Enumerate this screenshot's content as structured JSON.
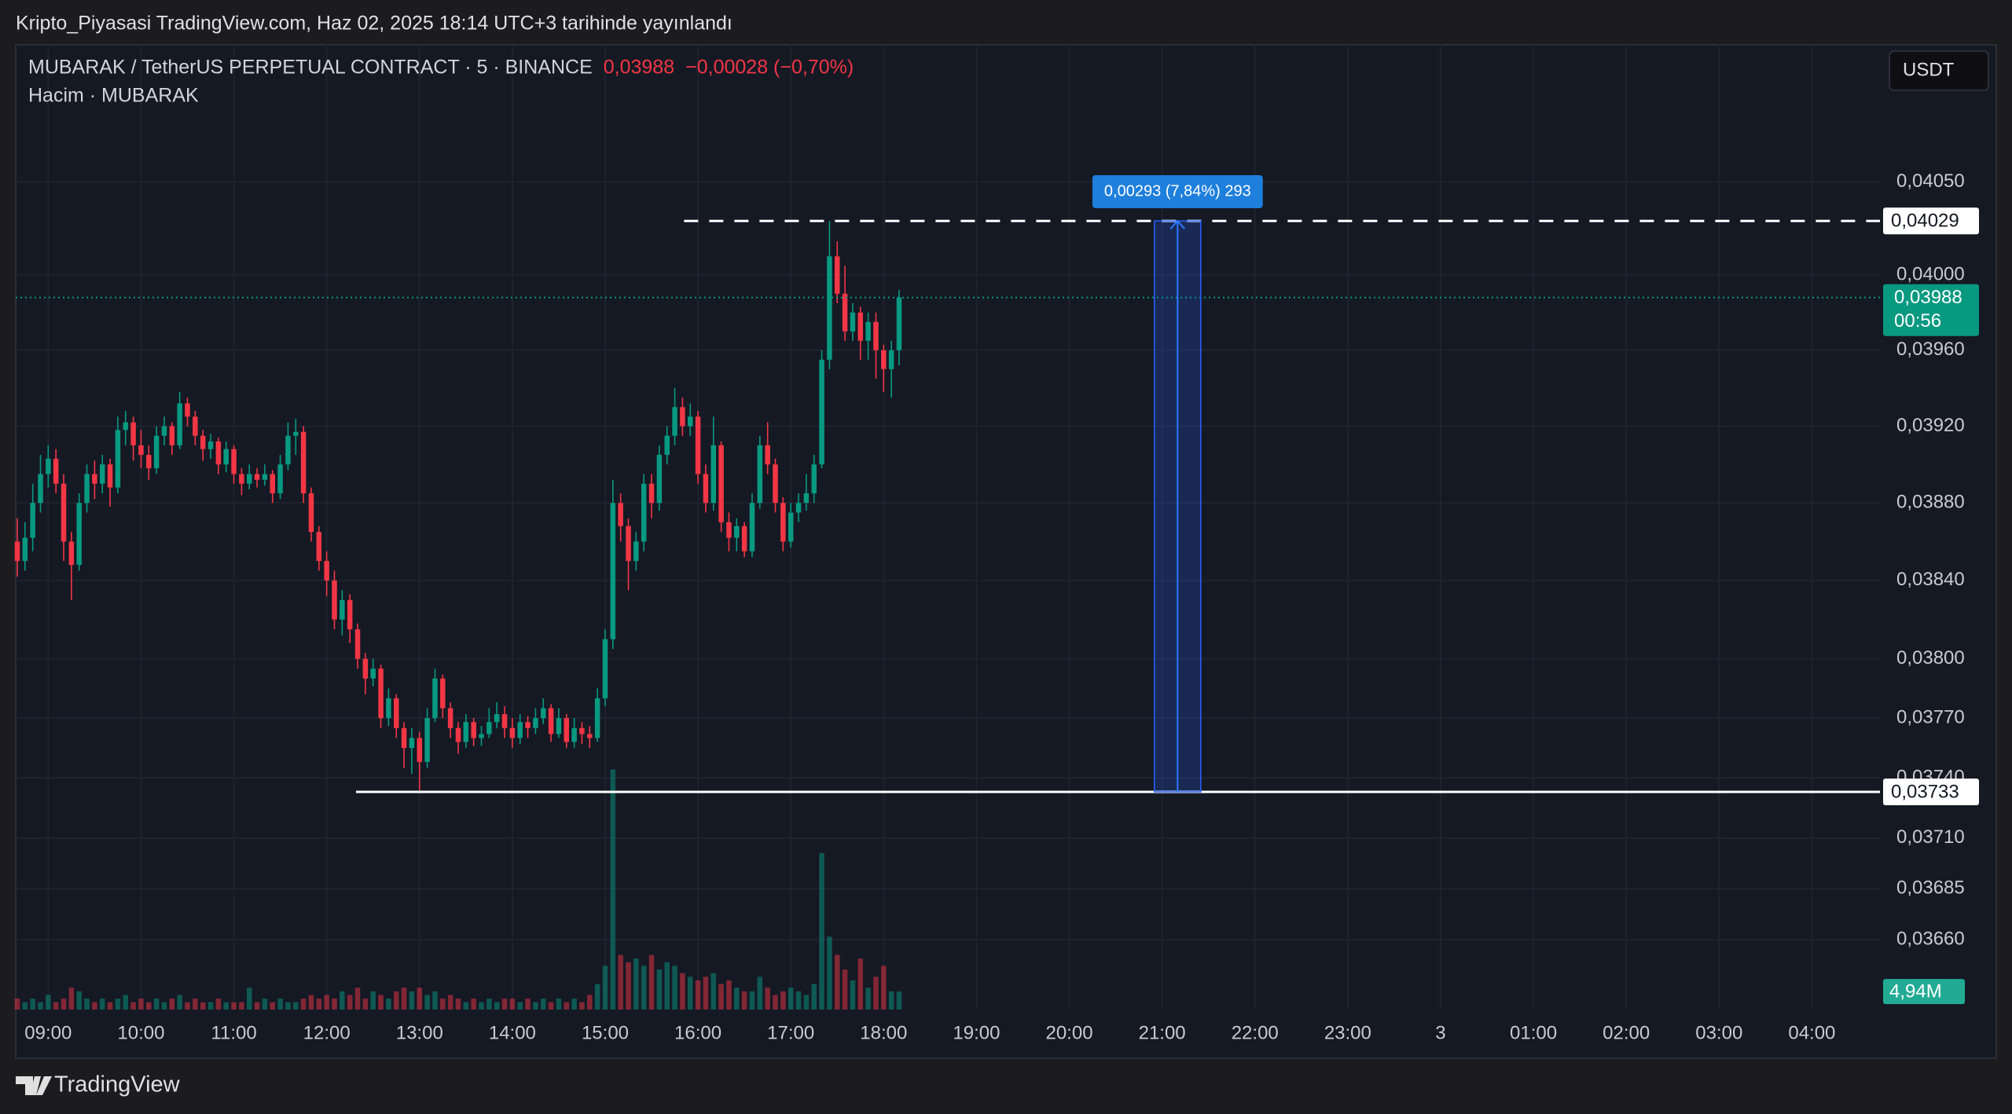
{
  "header": "Kripto_Piyasasi TradingView.com, Haz 02, 2025 18:14 UTC+3 tarihinde yayınlandı",
  "footer": "TradingView",
  "chart_data": {
    "type": "candlestick",
    "title": "MUBARAK / TetherUS PERPETUAL CONTRACT · 5 · BINANCE",
    "last_price_label": "0,03988",
    "change_label": "−0,00028 (−0,70%)",
    "volume_title": "Hacim · MUBARAK",
    "currency": "USDT",
    "countdown": "00:56",
    "volume_label": "4,94M",
    "up_color": "#089981",
    "down_color": "#f23645",
    "log_scale": true,
    "grid": true,
    "xlim": [
      519,
      1724
    ],
    "ylim": [
      0.03626,
      0.04125
    ],
    "xticks": [
      {
        "value": 540,
        "label": "09:00"
      },
      {
        "value": 600,
        "label": "10:00"
      },
      {
        "value": 660,
        "label": "11:00"
      },
      {
        "value": 720,
        "label": "12:00"
      },
      {
        "value": 780,
        "label": "13:00"
      },
      {
        "value": 840,
        "label": "14:00"
      },
      {
        "value": 900,
        "label": "15:00"
      },
      {
        "value": 960,
        "label": "16:00"
      },
      {
        "value": 1020,
        "label": "17:00"
      },
      {
        "value": 1080,
        "label": "18:00"
      },
      {
        "value": 1140,
        "label": "19:00"
      },
      {
        "value": 1200,
        "label": "20:00"
      },
      {
        "value": 1260,
        "label": "21:00"
      },
      {
        "value": 1320,
        "label": "22:00"
      },
      {
        "value": 1380,
        "label": "23:00"
      },
      {
        "value": 1440,
        "label": "3"
      },
      {
        "value": 1500,
        "label": "01:00"
      },
      {
        "value": 1560,
        "label": "02:00"
      },
      {
        "value": 1620,
        "label": "03:00"
      },
      {
        "value": 1680,
        "label": "04:00"
      }
    ],
    "yticks": [
      {
        "value": 0.0405,
        "label": "0,04050"
      },
      {
        "value": 0.04,
        "label": "0,04000"
      },
      {
        "value": 0.0396,
        "label": "0,03960"
      },
      {
        "value": 0.0392,
        "label": "0,03920"
      },
      {
        "value": 0.0388,
        "label": "0,03880"
      },
      {
        "value": 0.0384,
        "label": "0,03840"
      },
      {
        "value": 0.038,
        "label": "0,03800"
      },
      {
        "value": 0.0377,
        "label": "0,03770"
      },
      {
        "value": 0.0374,
        "label": "0,03740"
      },
      {
        "value": 0.0371,
        "label": "0,03710"
      },
      {
        "value": 0.03685,
        "label": "0,03685"
      },
      {
        "value": 0.0366,
        "label": "0,03660"
      }
    ],
    "hlines": [
      {
        "value": 0.04029,
        "label": "0,04029",
        "style": "dashed",
        "from": 951
      },
      {
        "value": 0.03733,
        "label": "0,03733",
        "style": "solid",
        "from": 739
      }
    ],
    "measure": {
      "label": "0,00293 (7,84%) 293",
      "from": 1255,
      "to": 1285
    },
    "x": [
      520,
      525,
      530,
      535,
      540,
      545,
      550,
      555,
      560,
      565,
      570,
      575,
      580,
      585,
      590,
      595,
      600,
      605,
      610,
      615,
      620,
      625,
      630,
      635,
      640,
      645,
      650,
      655,
      660,
      665,
      670,
      675,
      680,
      685,
      690,
      695,
      700,
      705,
      710,
      715,
      720,
      725,
      730,
      735,
      740,
      745,
      750,
      755,
      760,
      765,
      770,
      775,
      780,
      785,
      790,
      795,
      800,
      805,
      810,
      815,
      820,
      825,
      830,
      835,
      840,
      845,
      850,
      855,
      860,
      865,
      870,
      875,
      880,
      885,
      890,
      895,
      900,
      905,
      910,
      915,
      920,
      925,
      930,
      935,
      940,
      945,
      950,
      955,
      960,
      965,
      970,
      975,
      980,
      985,
      990,
      995,
      1000,
      1005,
      1010,
      1015,
      1020,
      1025,
      1030,
      1035,
      1040,
      1045,
      1050,
      1055,
      1060,
      1065,
      1070,
      1075,
      1080,
      1085,
      1090
    ],
    "open": [
      0.0386,
      0.0385,
      0.03862,
      0.0388,
      0.03895,
      0.03903,
      0.0389,
      0.0386,
      0.03848,
      0.0388,
      0.03895,
      0.0389,
      0.039,
      0.03888,
      0.03918,
      0.03922,
      0.0391,
      0.03905,
      0.03898,
      0.03915,
      0.0392,
      0.0391,
      0.03932,
      0.03925,
      0.03915,
      0.03908,
      0.03912,
      0.039,
      0.03908,
      0.03895,
      0.0389,
      0.03895,
      0.03892,
      0.03895,
      0.03885,
      0.039,
      0.03915,
      0.03917,
      0.03885,
      0.03865,
      0.0385,
      0.0384,
      0.0382,
      0.0383,
      0.03815,
      0.038,
      0.0379,
      0.03795,
      0.0377,
      0.0378,
      0.03765,
      0.03755,
      0.0376,
      0.03748,
      0.0377,
      0.0379,
      0.03775,
      0.03765,
      0.03758,
      0.03768,
      0.0376,
      0.03762,
      0.03768,
      0.03772,
      0.03765,
      0.0376,
      0.03768,
      0.03765,
      0.0377,
      0.03775,
      0.03762,
      0.0377,
      0.03758,
      0.03765,
      0.03762,
      0.0376,
      0.0378,
      0.0381,
      0.0388,
      0.03868,
      0.0385,
      0.0386,
      0.0389,
      0.0388,
      0.03905,
      0.03915,
      0.0393,
      0.0392,
      0.03925,
      0.03895,
      0.0388,
      0.0391,
      0.0387,
      0.03862,
      0.03868,
      0.03855,
      0.0388,
      0.0391,
      0.039,
      0.0388,
      0.0386,
      0.03875,
      0.0388,
      0.03885,
      0.039,
      0.03955,
      0.0401,
      0.0399,
      0.0397,
      0.0398,
      0.03965,
      0.03975,
      0.0396,
      0.0395,
      0.0396
    ],
    "high": [
      0.03872,
      0.0387,
      0.0389,
      0.03905,
      0.0391,
      0.03908,
      0.03895,
      0.03865,
      0.03885,
      0.039,
      0.03902,
      0.03905,
      0.03903,
      0.03925,
      0.03928,
      0.03925,
      0.03918,
      0.0391,
      0.0392,
      0.03925,
      0.03922,
      0.03938,
      0.03935,
      0.03928,
      0.03918,
      0.03916,
      0.03914,
      0.03912,
      0.0391,
      0.03898,
      0.039,
      0.03898,
      0.039,
      0.03897,
      0.03905,
      0.03922,
      0.03924,
      0.0392,
      0.03888,
      0.03868,
      0.03855,
      0.03845,
      0.03835,
      0.03833,
      0.03818,
      0.03803,
      0.038,
      0.03797,
      0.03785,
      0.03782,
      0.03768,
      0.03765,
      0.03763,
      0.03775,
      0.03795,
      0.03792,
      0.03778,
      0.03768,
      0.03772,
      0.0377,
      0.03766,
      0.03775,
      0.03778,
      0.03776,
      0.0377,
      0.03772,
      0.03771,
      0.03775,
      0.0378,
      0.03777,
      0.03775,
      0.03772,
      0.0377,
      0.03768,
      0.03766,
      0.03785,
      0.03815,
      0.03892,
      0.03885,
      0.03872,
      0.03865,
      0.03895,
      0.03895,
      0.0391,
      0.0392,
      0.0394,
      0.03935,
      0.03932,
      0.03928,
      0.039,
      0.03925,
      0.03912,
      0.03875,
      0.03872,
      0.0387,
      0.03885,
      0.03915,
      0.03922,
      0.03903,
      0.03883,
      0.0388,
      0.03885,
      0.03895,
      0.03905,
      0.0396,
      0.04029,
      0.04018,
      0.04005,
      0.03985,
      0.03983,
      0.0398,
      0.0398,
      0.03963,
      0.03965,
      0.03992
    ],
    "low": [
      0.03842,
      0.03845,
      0.03855,
      0.03875,
      0.03888,
      0.03885,
      0.0385,
      0.0383,
      0.03845,
      0.03875,
      0.03882,
      0.03885,
      0.03878,
      0.03885,
      0.0391,
      0.03902,
      0.03898,
      0.03892,
      0.03895,
      0.0391,
      0.03905,
      0.03908,
      0.0392,
      0.0391,
      0.03902,
      0.03903,
      0.03895,
      0.03896,
      0.0389,
      0.03884,
      0.03887,
      0.03888,
      0.03889,
      0.0388,
      0.03882,
      0.03897,
      0.03905,
      0.0388,
      0.0386,
      0.03845,
      0.03832,
      0.03815,
      0.03812,
      0.03808,
      0.03795,
      0.03782,
      0.03786,
      0.03765,
      0.03766,
      0.0376,
      0.03745,
      0.03742,
      0.03733,
      0.03745,
      0.03768,
      0.0377,
      0.0376,
      0.03752,
      0.03755,
      0.03756,
      0.03756,
      0.0376,
      0.03765,
      0.0376,
      0.03755,
      0.03757,
      0.0376,
      0.03762,
      0.03767,
      0.03758,
      0.0376,
      0.03755,
      0.03755,
      0.03757,
      0.03755,
      0.03758,
      0.03776,
      0.03805,
      0.0386,
      0.03835,
      0.03845,
      0.03855,
      0.03872,
      0.03876,
      0.039,
      0.0391,
      0.03915,
      0.03915,
      0.0389,
      0.03875,
      0.03876,
      0.03865,
      0.03855,
      0.03855,
      0.03852,
      0.03852,
      0.03877,
      0.03895,
      0.03875,
      0.03855,
      0.03857,
      0.0387,
      0.03876,
      0.0388,
      0.03898,
      0.0395,
      0.03985,
      0.03965,
      0.03965,
      0.03955,
      0.03955,
      0.03945,
      0.03938,
      0.03935,
      0.03952
    ],
    "close": [
      0.0385,
      0.03862,
      0.0388,
      0.03895,
      0.03903,
      0.0389,
      0.0386,
      0.03848,
      0.0388,
      0.03895,
      0.0389,
      0.039,
      0.03888,
      0.03918,
      0.03922,
      0.0391,
      0.03905,
      0.03898,
      0.03915,
      0.0392,
      0.0391,
      0.03932,
      0.03925,
      0.03915,
      0.03908,
      0.03912,
      0.039,
      0.03908,
      0.03895,
      0.0389,
      0.03895,
      0.03892,
      0.03895,
      0.03885,
      0.039,
      0.03915,
      0.03917,
      0.03885,
      0.03865,
      0.0385,
      0.0384,
      0.0382,
      0.0383,
      0.03815,
      0.038,
      0.0379,
      0.03795,
      0.0377,
      0.0378,
      0.03765,
      0.03755,
      0.0376,
      0.03748,
      0.0377,
      0.0379,
      0.03775,
      0.03765,
      0.03758,
      0.03768,
      0.0376,
      0.03762,
      0.03768,
      0.03772,
      0.03765,
      0.0376,
      0.03768,
      0.03765,
      0.0377,
      0.03775,
      0.03762,
      0.0377,
      0.03758,
      0.03765,
      0.03762,
      0.0376,
      0.0378,
      0.0381,
      0.0388,
      0.03868,
      0.0385,
      0.0386,
      0.0389,
      0.0388,
      0.03905,
      0.03915,
      0.0393,
      0.0392,
      0.03925,
      0.03895,
      0.0388,
      0.0391,
      0.0387,
      0.03862,
      0.03868,
      0.03855,
      0.0388,
      0.0391,
      0.039,
      0.0388,
      0.0386,
      0.03875,
      0.0388,
      0.03885,
      0.039,
      0.03955,
      0.0401,
      0.0399,
      0.0397,
      0.0398,
      0.03965,
      0.03975,
      0.0396,
      0.0395,
      0.0396,
      0.03988
    ],
    "volume": [
      3,
      2,
      3,
      2,
      4,
      2,
      3,
      6,
      5,
      3,
      2,
      3,
      2,
      3,
      4,
      2,
      3,
      2,
      3,
      2,
      3,
      4,
      2,
      3,
      2,
      2,
      3,
      2,
      2,
      2,
      6,
      2,
      3,
      2,
      3,
      2,
      2,
      3,
      4,
      3,
      4,
      3,
      5,
      4,
      6,
      3,
      5,
      4,
      3,
      5,
      6,
      5,
      6,
      4,
      5,
      3,
      4,
      3,
      2,
      3,
      2,
      3,
      2,
      3,
      3,
      2,
      3,
      2,
      3,
      2,
      3,
      2,
      3,
      2,
      4,
      7,
      12,
      66,
      15,
      13,
      14,
      12,
      15,
      11,
      13,
      12,
      10,
      9,
      8,
      9,
      10,
      7,
      8,
      6,
      5,
      5,
      9,
      6,
      4,
      5,
      6,
      5,
      4,
      7,
      43,
      20,
      15,
      11,
      8,
      14,
      6,
      9,
      12,
      5,
      4.94
    ]
  }
}
